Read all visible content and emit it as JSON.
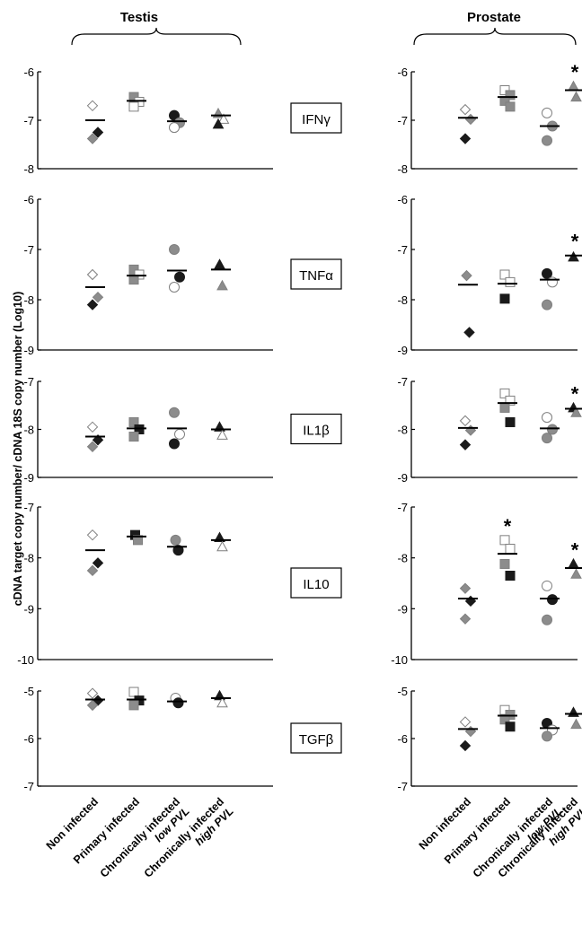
{
  "y_axis_label": "cDNA target copy number/ cDNA 18S copy number (Log10)",
  "tissues": [
    "Testis",
    "Prostate"
  ],
  "groups": [
    {
      "line1": "Non infected",
      "line2": ""
    },
    {
      "line1": "Primary infected",
      "line2": ""
    },
    {
      "line1": "Chronically infected",
      "line2": "low PVL"
    },
    {
      "line1": "Chronically infected",
      "line2": "high PVL"
    }
  ],
  "colors": {
    "open": "#ffffff",
    "gray": "#8c8c8c",
    "black": "#1a1a1a",
    "outline": "#7f7f7f",
    "axis": "#000000"
  },
  "chart_data": {
    "type": "scatter",
    "note_shapes": [
      "diamond",
      "square",
      "circle",
      "triangle"
    ],
    "panels": [
      {
        "label": "IFNγ",
        "ticks": [
          "-6",
          "-7",
          "-8"
        ],
        "ylim": [
          -8,
          -6
        ],
        "Testis": {
          "groups": [
            {
              "mean": -7.0,
              "points": [
                {
                  "y": -6.7,
                  "fill": "open"
                },
                {
                  "y": -7.25,
                  "fill": "black"
                },
                {
                  "y": -7.38,
                  "fill": "gray"
                }
              ]
            },
            {
              "mean": -6.6,
              "points": [
                {
                  "y": -6.52,
                  "fill": "gray"
                },
                {
                  "y": -6.62,
                  "fill": "open"
                },
                {
                  "y": -6.72,
                  "fill": "open"
                }
              ]
            },
            {
              "mean": -7.02,
              "points": [
                {
                  "y": -6.9,
                  "fill": "black"
                },
                {
                  "y": -7.05,
                  "fill": "gray"
                },
                {
                  "y": -7.15,
                  "fill": "open"
                }
              ]
            },
            {
              "mean": -6.9,
              "points": [
                {
                  "y": -6.86,
                  "fill": "gray"
                },
                {
                  "y": -6.98,
                  "fill": "open"
                },
                {
                  "y": -7.08,
                  "fill": "black"
                }
              ]
            }
          ]
        },
        "Prostate": {
          "groups": [
            {
              "mean": -6.95,
              "points": [
                {
                  "y": -6.78,
                  "fill": "open"
                },
                {
                  "y": -6.98,
                  "fill": "gray"
                },
                {
                  "y": -7.38,
                  "fill": "black"
                }
              ]
            },
            {
              "mean": -6.52,
              "points": [
                {
                  "y": -6.38,
                  "fill": "open"
                },
                {
                  "y": -6.48,
                  "fill": "gray"
                },
                {
                  "y": -6.6,
                  "fill": "gray"
                },
                {
                  "y": -6.72,
                  "fill": "gray"
                }
              ]
            },
            {
              "mean": -7.12,
              "points": [
                {
                  "y": -6.85,
                  "fill": "open"
                },
                {
                  "y": -7.12,
                  "fill": "gray"
                },
                {
                  "y": -7.42,
                  "fill": "gray"
                }
              ]
            },
            {
              "mean": -6.38,
              "points": [
                {
                  "y": -6.3,
                  "fill": "gray"
                },
                {
                  "y": -6.52,
                  "fill": "gray"
                }
              ],
              "star": "*"
            }
          ]
        }
      },
      {
        "label": "TNFα",
        "ticks": [
          "-6",
          "-7",
          "-8",
          "-9"
        ],
        "ylim": [
          -9,
          -6
        ],
        "Testis": {
          "groups": [
            {
              "mean": -7.75,
              "points": [
                {
                  "y": -7.5,
                  "fill": "open"
                },
                {
                  "y": -7.95,
                  "fill": "gray"
                },
                {
                  "y": -8.1,
                  "fill": "black"
                }
              ]
            },
            {
              "mean": -7.52,
              "points": [
                {
                  "y": -7.4,
                  "fill": "gray"
                },
                {
                  "y": -7.5,
                  "fill": "open"
                },
                {
                  "y": -7.6,
                  "fill": "gray"
                }
              ]
            },
            {
              "mean": -7.42,
              "points": [
                {
                  "y": -7.0,
                  "fill": "gray"
                },
                {
                  "y": -7.55,
                  "fill": "black"
                },
                {
                  "y": -7.75,
                  "fill": "open"
                }
              ]
            },
            {
              "mean": -7.4,
              "points": [
                {
                  "y": -7.3,
                  "fill": "black"
                },
                {
                  "y": -7.72,
                  "fill": "gray"
                }
              ]
            }
          ]
        },
        "Prostate": {
          "groups": [
            {
              "mean": -7.7,
              "points": [
                {
                  "y": -7.52,
                  "fill": "gray"
                },
                {
                  "y": -8.65,
                  "fill": "black"
                }
              ]
            },
            {
              "mean": -7.68,
              "points": [
                {
                  "y": -7.5,
                  "fill": "open"
                },
                {
                  "y": -7.65,
                  "fill": "open"
                },
                {
                  "y": -7.98,
                  "fill": "black"
                }
              ]
            },
            {
              "mean": -7.6,
              "points": [
                {
                  "y": -7.48,
                  "fill": "black"
                },
                {
                  "y": -7.65,
                  "fill": "open"
                },
                {
                  "y": -8.1,
                  "fill": "gray"
                }
              ]
            },
            {
              "mean": -7.12,
              "points": [
                {
                  "y": -7.15,
                  "fill": "black"
                }
              ],
              "star": "*"
            }
          ]
        }
      },
      {
        "label": "IL1β",
        "ticks": [
          "-7",
          "-8",
          "-9"
        ],
        "ylim": [
          -9,
          -7
        ],
        "Testis": {
          "groups": [
            {
              "mean": -8.15,
              "points": [
                {
                  "y": -7.95,
                  "fill": "open"
                },
                {
                  "y": -8.22,
                  "fill": "black"
                },
                {
                  "y": -8.36,
                  "fill": "gray"
                }
              ]
            },
            {
              "mean": -7.98,
              "points": [
                {
                  "y": -7.85,
                  "fill": "gray"
                },
                {
                  "y": -8.0,
                  "fill": "black"
                },
                {
                  "y": -8.15,
                  "fill": "gray"
                }
              ]
            },
            {
              "mean": -7.98,
              "points": [
                {
                  "y": -7.65,
                  "fill": "gray"
                },
                {
                  "y": -8.1,
                  "fill": "open"
                },
                {
                  "y": -8.3,
                  "fill": "black"
                }
              ]
            },
            {
              "mean": -8.0,
              "points": [
                {
                  "y": -7.95,
                  "fill": "black"
                },
                {
                  "y": -8.12,
                  "fill": "open"
                }
              ]
            }
          ]
        },
        "Prostate": {
          "groups": [
            {
              "mean": -7.97,
              "points": [
                {
                  "y": -7.82,
                  "fill": "open"
                },
                {
                  "y": -8.02,
                  "fill": "gray"
                },
                {
                  "y": -8.32,
                  "fill": "black"
                }
              ]
            },
            {
              "mean": -7.45,
              "points": [
                {
                  "y": -7.25,
                  "fill": "open"
                },
                {
                  "y": -7.4,
                  "fill": "open"
                },
                {
                  "y": -7.55,
                  "fill": "gray"
                },
                {
                  "y": -7.85,
                  "fill": "black"
                }
              ]
            },
            {
              "mean": -7.98,
              "points": [
                {
                  "y": -7.75,
                  "fill": "open"
                },
                {
                  "y": -8.0,
                  "fill": "gray"
                },
                {
                  "y": -8.18,
                  "fill": "gray"
                }
              ]
            },
            {
              "mean": -7.57,
              "points": [
                {
                  "y": -7.55,
                  "fill": "black"
                },
                {
                  "y": -7.65,
                  "fill": "gray"
                }
              ],
              "star": "*"
            }
          ]
        }
      },
      {
        "label": "IL10",
        "ticks": [
          "-7",
          "-8",
          "-9",
          "-10"
        ],
        "ylim": [
          -10,
          -7
        ],
        "Testis": {
          "groups": [
            {
              "mean": -7.85,
              "points": [
                {
                  "y": -7.55,
                  "fill": "open"
                },
                {
                  "y": -8.1,
                  "fill": "black"
                },
                {
                  "y": -8.25,
                  "fill": "gray"
                }
              ]
            },
            {
              "mean": -7.58,
              "points": [
                {
                  "y": -7.55,
                  "fill": "black"
                },
                {
                  "y": -7.65,
                  "fill": "gray"
                }
              ]
            },
            {
              "mean": -7.78,
              "points": [
                {
                  "y": -7.65,
                  "fill": "gray"
                },
                {
                  "y": -7.85,
                  "fill": "black"
                }
              ]
            },
            {
              "mean": -7.65,
              "points": [
                {
                  "y": -7.6,
                  "fill": "black"
                },
                {
                  "y": -7.78,
                  "fill": "open"
                }
              ]
            }
          ]
        },
        "Prostate": {
          "groups": [
            {
              "mean": -8.8,
              "points": [
                {
                  "y": -8.6,
                  "fill": "gray"
                },
                {
                  "y": -8.85,
                  "fill": "black"
                },
                {
                  "y": -9.2,
                  "fill": "gray"
                }
              ]
            },
            {
              "mean": -7.92,
              "points": [
                {
                  "y": -7.65,
                  "fill": "open"
                },
                {
                  "y": -7.82,
                  "fill": "open"
                },
                {
                  "y": -8.12,
                  "fill": "gray"
                },
                {
                  "y": -8.35,
                  "fill": "black"
                }
              ],
              "star": "*"
            },
            {
              "mean": -8.8,
              "points": [
                {
                  "y": -8.55,
                  "fill": "open"
                },
                {
                  "y": -8.82,
                  "fill": "black"
                },
                {
                  "y": -9.22,
                  "fill": "gray"
                }
              ]
            },
            {
              "mean": -8.2,
              "points": [
                {
                  "y": -8.12,
                  "fill": "black"
                },
                {
                  "y": -8.32,
                  "fill": "gray"
                }
              ],
              "star": "*"
            }
          ]
        }
      },
      {
        "label": "TGFβ",
        "ticks": [
          "-5",
          "-6",
          "-7"
        ],
        "ylim": [
          -7,
          -5
        ],
        "Testis": {
          "groups": [
            {
              "mean": -5.18,
              "points": [
                {
                  "y": -5.05,
                  "fill": "open"
                },
                {
                  "y": -5.2,
                  "fill": "black"
                },
                {
                  "y": -5.3,
                  "fill": "gray"
                }
              ]
            },
            {
              "mean": -5.18,
              "points": [
                {
                  "y": -5.02,
                  "fill": "open"
                },
                {
                  "y": -5.2,
                  "fill": "black"
                },
                {
                  "y": -5.3,
                  "fill": "gray"
                }
              ]
            },
            {
              "mean": -5.22,
              "points": [
                {
                  "y": -5.15,
                  "fill": "open"
                },
                {
                  "y": -5.25,
                  "fill": "black"
                }
              ]
            },
            {
              "mean": -5.15,
              "points": [
                {
                  "y": -5.1,
                  "fill": "black"
                },
                {
                  "y": -5.25,
                  "fill": "open"
                }
              ]
            }
          ]
        },
        "Prostate": {
          "groups": [
            {
              "mean": -5.8,
              "points": [
                {
                  "y": -5.65,
                  "fill": "open"
                },
                {
                  "y": -5.85,
                  "fill": "gray"
                },
                {
                  "y": -6.15,
                  "fill": "black"
                }
              ]
            },
            {
              "mean": -5.52,
              "points": [
                {
                  "y": -5.4,
                  "fill": "open"
                },
                {
                  "y": -5.5,
                  "fill": "gray"
                },
                {
                  "y": -5.6,
                  "fill": "gray"
                },
                {
                  "y": -5.75,
                  "fill": "black"
                }
              ]
            },
            {
              "mean": -5.78,
              "points": [
                {
                  "y": -5.68,
                  "fill": "black"
                },
                {
                  "y": -5.82,
                  "fill": "open"
                },
                {
                  "y": -5.95,
                  "fill": "gray"
                }
              ]
            },
            {
              "mean": -5.48,
              "points": [
                {
                  "y": -5.45,
                  "fill": "black"
                },
                {
                  "y": -5.7,
                  "fill": "gray"
                }
              ]
            }
          ]
        }
      }
    ]
  }
}
